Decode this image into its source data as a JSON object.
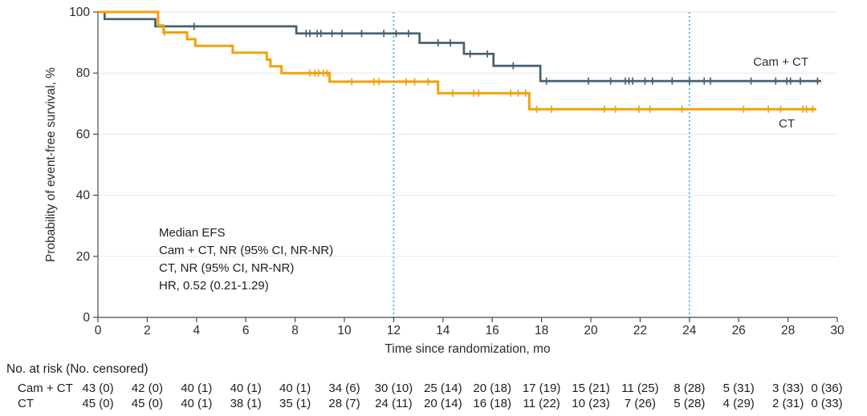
{
  "chart_data": {
    "type": "line",
    "subtype": "kaplan_meier_step",
    "title": "",
    "xlabel": "Time since randomization, mo",
    "ylabel": "Probability of event-free survival, %",
    "xlim": [
      0,
      30
    ],
    "ylim": [
      0,
      100
    ],
    "x_ticks": [
      0,
      2,
      4,
      6,
      8,
      10,
      12,
      14,
      16,
      18,
      20,
      22,
      24,
      26,
      28,
      30
    ],
    "y_ticks": [
      0,
      20,
      40,
      60,
      80,
      100
    ],
    "grid": "horizontal",
    "reference_lines_x": [
      12,
      24
    ],
    "legend_position": "inline-right",
    "annotation": [
      "Median EFS",
      "Cam + CT, NR (95% CI, NR-NR)",
      "CT, NR (95% CI, NR-NR)",
      "HR, 0.52 (0.21-1.29)"
    ],
    "series": [
      {
        "name": "Cam + CT",
        "color": "#46606F",
        "line_width": 2.7,
        "steps": [
          [
            0,
            100
          ],
          [
            0.27,
            97.7
          ],
          [
            2.33,
            95.3
          ],
          [
            8.05,
            93.0
          ],
          [
            13.05,
            89.9
          ],
          [
            14.85,
            86.3
          ],
          [
            16.05,
            82.4
          ],
          [
            17.95,
            77.4
          ]
        ],
        "end_x": 29.35,
        "censor_marks": [
          [
            3.9,
            95.3
          ],
          [
            8.45,
            93.0
          ],
          [
            8.6,
            93.0
          ],
          [
            8.9,
            93.0
          ],
          [
            9.05,
            93.0
          ],
          [
            9.5,
            93.0
          ],
          [
            9.9,
            93.0
          ],
          [
            10.7,
            93.0
          ],
          [
            11.6,
            93.0
          ],
          [
            12.1,
            93.0
          ],
          [
            12.6,
            93.0
          ],
          [
            13.8,
            89.9
          ],
          [
            14.3,
            89.9
          ],
          [
            15.1,
            86.3
          ],
          [
            15.8,
            86.3
          ],
          [
            16.85,
            82.4
          ],
          [
            18.2,
            77.4
          ],
          [
            19.9,
            77.4
          ],
          [
            20.8,
            77.4
          ],
          [
            21.4,
            77.4
          ],
          [
            21.55,
            77.4
          ],
          [
            21.7,
            77.4
          ],
          [
            22.2,
            77.4
          ],
          [
            22.5,
            77.4
          ],
          [
            23.3,
            77.4
          ],
          [
            24.0,
            77.4
          ],
          [
            24.6,
            77.4
          ],
          [
            24.85,
            77.4
          ],
          [
            26.5,
            77.4
          ],
          [
            27.5,
            77.4
          ],
          [
            27.95,
            77.4
          ],
          [
            28.1,
            77.4
          ],
          [
            28.5,
            77.4
          ],
          [
            29.2,
            77.4
          ]
        ]
      },
      {
        "name": "CT",
        "color": "#F0A20A",
        "line_width": 3,
        "steps": [
          [
            0,
            100
          ],
          [
            2.44,
            95.6
          ],
          [
            2.66,
            93.3
          ],
          [
            3.62,
            91.1
          ],
          [
            3.95,
            88.9
          ],
          [
            5.47,
            86.7
          ],
          [
            6.85,
            84.4
          ],
          [
            7.0,
            82.2
          ],
          [
            7.45,
            80.0
          ],
          [
            9.4,
            77.2
          ],
          [
            13.8,
            73.4
          ],
          [
            17.5,
            68.2
          ]
        ],
        "end_x": 29.15,
        "censor_marks": [
          [
            2.7,
            93.3
          ],
          [
            8.6,
            80.0
          ],
          [
            8.8,
            80.0
          ],
          [
            8.95,
            80.0
          ],
          [
            9.15,
            80.0
          ],
          [
            9.3,
            80.0
          ],
          [
            10.3,
            77.2
          ],
          [
            11.2,
            77.2
          ],
          [
            11.4,
            77.2
          ],
          [
            12.5,
            77.2
          ],
          [
            12.85,
            77.2
          ],
          [
            13.4,
            77.2
          ],
          [
            14.4,
            73.4
          ],
          [
            15.25,
            73.4
          ],
          [
            15.45,
            73.4
          ],
          [
            16.75,
            73.4
          ],
          [
            17.05,
            73.4
          ],
          [
            17.35,
            73.4
          ],
          [
            17.8,
            68.2
          ],
          [
            18.4,
            68.2
          ],
          [
            20.55,
            68.2
          ],
          [
            21.0,
            68.2
          ],
          [
            21.95,
            68.2
          ],
          [
            22.4,
            68.2
          ],
          [
            23.7,
            68.2
          ],
          [
            26.2,
            68.2
          ],
          [
            27.2,
            68.2
          ],
          [
            27.7,
            68.2
          ],
          [
            28.6,
            68.2
          ],
          [
            28.75,
            68.2
          ],
          [
            29.0,
            68.2
          ]
        ]
      }
    ]
  },
  "risk_table": {
    "header": "No. at risk (No. censored)",
    "time_points": [
      0,
      2,
      4,
      6,
      8,
      10,
      12,
      14,
      16,
      18,
      20,
      22,
      24,
      26,
      28,
      30
    ],
    "rows": [
      {
        "label": "Cam + CT",
        "values": [
          "43 (0)",
          "42 (0)",
          "40 (1)",
          "40 (1)",
          "40 (1)",
          "34 (6)",
          "30 (10)",
          "25 (14)",
          "20 (18)",
          "17 (19)",
          "15 (21)",
          "11 (25)",
          "8 (28)",
          "5 (31)",
          "3 (33)",
          "0 (36)"
        ]
      },
      {
        "label": "CT",
        "values": [
          "45 (0)",
          "45 (0)",
          "40 (1)",
          "38 (1)",
          "35 (1)",
          "28 (7)",
          "24 (11)",
          "20 (14)",
          "16 (18)",
          "11 (22)",
          "10 (23)",
          "7 (26)",
          "5 (28)",
          "4 (29)",
          "2 (31)",
          "0 (33)"
        ]
      }
    ]
  },
  "colors": {
    "cam_ct_line": "#46606F",
    "ct_line": "#F0A20A",
    "reference_line": "#3CB6E6",
    "gridline": "#EBEBEB",
    "axis": "#4A4A4A",
    "text": "#1D1D1D"
  }
}
